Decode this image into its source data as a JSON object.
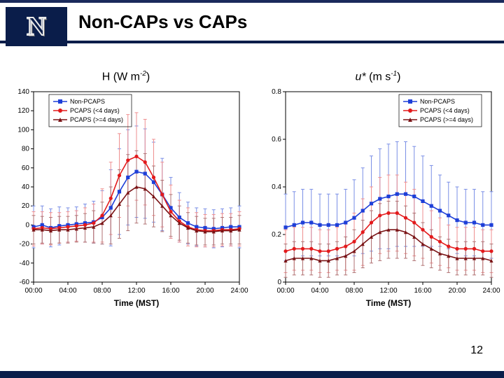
{
  "slide": {
    "title": "Non-CAPs vs CAPs",
    "page_number": "12"
  },
  "colors": {
    "header_bg": "#0a1d4a",
    "series1": "#1e3fd8",
    "series2": "#e31a1c",
    "series3": "#7a1315",
    "axis": "#000000",
    "bg": "#ffffff",
    "err1": "#7a8fe6",
    "err2": "#ef8f90",
    "err3": "#b07273"
  },
  "legend": {
    "items": [
      "Non-PCAPS",
      "PCAPS (<4 days)",
      "PCAPS (>=4 days)"
    ],
    "markers": [
      "square",
      "circle",
      "triangle"
    ]
  },
  "x_axis": {
    "label": "Time (MST)",
    "ticks": [
      "00:00",
      "04:00",
      "08:00",
      "12:00",
      "16:00",
      "20:00",
      "24:00"
    ],
    "tick_pos": [
      0,
      4,
      8,
      12,
      16,
      20,
      24
    ],
    "range": [
      0,
      24
    ]
  },
  "chart_left": {
    "label_prefix": "H ",
    "label_unit_open": "(W m",
    "label_sup": "-2",
    "label_close": ")",
    "y_range": [
      -60,
      140
    ],
    "y_ticks": [
      -60,
      -40,
      -20,
      0,
      20,
      40,
      60,
      80,
      100,
      120,
      140
    ],
    "series1": {
      "x": [
        0,
        1,
        2,
        3,
        4,
        5,
        6,
        7,
        8,
        9,
        10,
        11,
        12,
        13,
        14,
        15,
        16,
        17,
        18,
        19,
        20,
        21,
        22,
        23,
        24
      ],
      "y": [
        -2,
        0,
        -3,
        -1,
        0,
        1,
        2,
        3,
        8,
        18,
        35,
        50,
        56,
        54,
        45,
        32,
        18,
        8,
        2,
        -2,
        -3,
        -4,
        -3,
        -2,
        -2
      ],
      "err": [
        22,
        20,
        20,
        20,
        18,
        18,
        20,
        22,
        28,
        40,
        45,
        50,
        48,
        47,
        42,
        38,
        32,
        26,
        22,
        20,
        20,
        20,
        20,
        20,
        22
      ]
    },
    "series2": {
      "x": [
        0,
        1,
        2,
        3,
        4,
        5,
        6,
        7,
        8,
        9,
        10,
        11,
        12,
        13,
        14,
        15,
        16,
        17,
        18,
        19,
        20,
        21,
        22,
        23,
        24
      ],
      "y": [
        -4,
        -3,
        -4,
        -3,
        -2,
        -1,
        0,
        2,
        10,
        28,
        52,
        68,
        72,
        66,
        50,
        32,
        14,
        4,
        -2,
        -5,
        -6,
        -6,
        -5,
        -5,
        -4
      ],
      "err": [
        18,
        17,
        17,
        16,
        16,
        16,
        18,
        20,
        28,
        38,
        44,
        48,
        46,
        45,
        40,
        34,
        28,
        22,
        20,
        18,
        17,
        17,
        17,
        17,
        18
      ]
    },
    "series3": {
      "x": [
        0,
        1,
        2,
        3,
        4,
        5,
        6,
        7,
        8,
        9,
        10,
        11,
        12,
        13,
        14,
        15,
        16,
        17,
        18,
        19,
        20,
        21,
        22,
        23,
        24
      ],
      "y": [
        -5,
        -5,
        -6,
        -5,
        -5,
        -4,
        -3,
        -2,
        2,
        10,
        22,
        34,
        40,
        38,
        30,
        20,
        10,
        2,
        -3,
        -6,
        -7,
        -7,
        -6,
        -6,
        -5
      ],
      "err": [
        15,
        14,
        14,
        14,
        14,
        14,
        15,
        17,
        22,
        30,
        36,
        40,
        38,
        37,
        32,
        27,
        22,
        18,
        16,
        15,
        14,
        14,
        14,
        14,
        15
      ]
    }
  },
  "chart_right": {
    "label_prefix": "u* ",
    "label_unit_open": "(m s",
    "label_sup": "-1",
    "label_close": ")",
    "y_range": [
      0,
      0.8
    ],
    "y_ticks": [
      0,
      0.2,
      0.4,
      0.6,
      0.8
    ],
    "series1": {
      "x": [
        0,
        1,
        2,
        3,
        4,
        5,
        6,
        7,
        8,
        9,
        10,
        11,
        12,
        13,
        14,
        15,
        16,
        17,
        18,
        19,
        20,
        21,
        22,
        23,
        24
      ],
      "y": [
        0.23,
        0.24,
        0.25,
        0.25,
        0.24,
        0.24,
        0.24,
        0.25,
        0.27,
        0.3,
        0.33,
        0.35,
        0.36,
        0.37,
        0.37,
        0.36,
        0.34,
        0.32,
        0.3,
        0.28,
        0.26,
        0.25,
        0.25,
        0.24,
        0.24
      ],
      "err": [
        0.14,
        0.14,
        0.14,
        0.14,
        0.13,
        0.13,
        0.13,
        0.14,
        0.16,
        0.18,
        0.2,
        0.21,
        0.22,
        0.22,
        0.22,
        0.21,
        0.19,
        0.17,
        0.15,
        0.14,
        0.14,
        0.14,
        0.14,
        0.14,
        0.14
      ]
    },
    "series2": {
      "x": [
        0,
        1,
        2,
        3,
        4,
        5,
        6,
        7,
        8,
        9,
        10,
        11,
        12,
        13,
        14,
        15,
        16,
        17,
        18,
        19,
        20,
        21,
        22,
        23,
        24
      ],
      "y": [
        0.13,
        0.14,
        0.14,
        0.14,
        0.13,
        0.13,
        0.14,
        0.15,
        0.17,
        0.21,
        0.25,
        0.28,
        0.29,
        0.29,
        0.27,
        0.25,
        0.22,
        0.19,
        0.17,
        0.15,
        0.14,
        0.14,
        0.14,
        0.13,
        0.13
      ],
      "err": [
        0.09,
        0.09,
        0.09,
        0.09,
        0.09,
        0.09,
        0.09,
        0.1,
        0.12,
        0.14,
        0.15,
        0.16,
        0.16,
        0.16,
        0.15,
        0.14,
        0.12,
        0.11,
        0.1,
        0.09,
        0.09,
        0.09,
        0.09,
        0.09,
        0.09
      ]
    },
    "series3": {
      "x": [
        0,
        1,
        2,
        3,
        4,
        5,
        6,
        7,
        8,
        9,
        10,
        11,
        12,
        13,
        14,
        15,
        16,
        17,
        18,
        19,
        20,
        21,
        22,
        23,
        24
      ],
      "y": [
        0.09,
        0.1,
        0.1,
        0.1,
        0.09,
        0.09,
        0.1,
        0.11,
        0.13,
        0.16,
        0.19,
        0.21,
        0.22,
        0.22,
        0.21,
        0.19,
        0.16,
        0.14,
        0.12,
        0.11,
        0.1,
        0.1,
        0.1,
        0.1,
        0.09
      ],
      "err": [
        0.07,
        0.07,
        0.07,
        0.07,
        0.07,
        0.07,
        0.07,
        0.08,
        0.09,
        0.1,
        0.11,
        0.12,
        0.12,
        0.12,
        0.11,
        0.1,
        0.09,
        0.08,
        0.07,
        0.07,
        0.07,
        0.07,
        0.07,
        0.07,
        0.07
      ]
    }
  },
  "typography": {
    "title_fontsize": 26,
    "chart_label_fontsize": 16,
    "tick_fontsize": 10,
    "legend_fontsize": 9,
    "axis_label_fontsize": 12
  }
}
